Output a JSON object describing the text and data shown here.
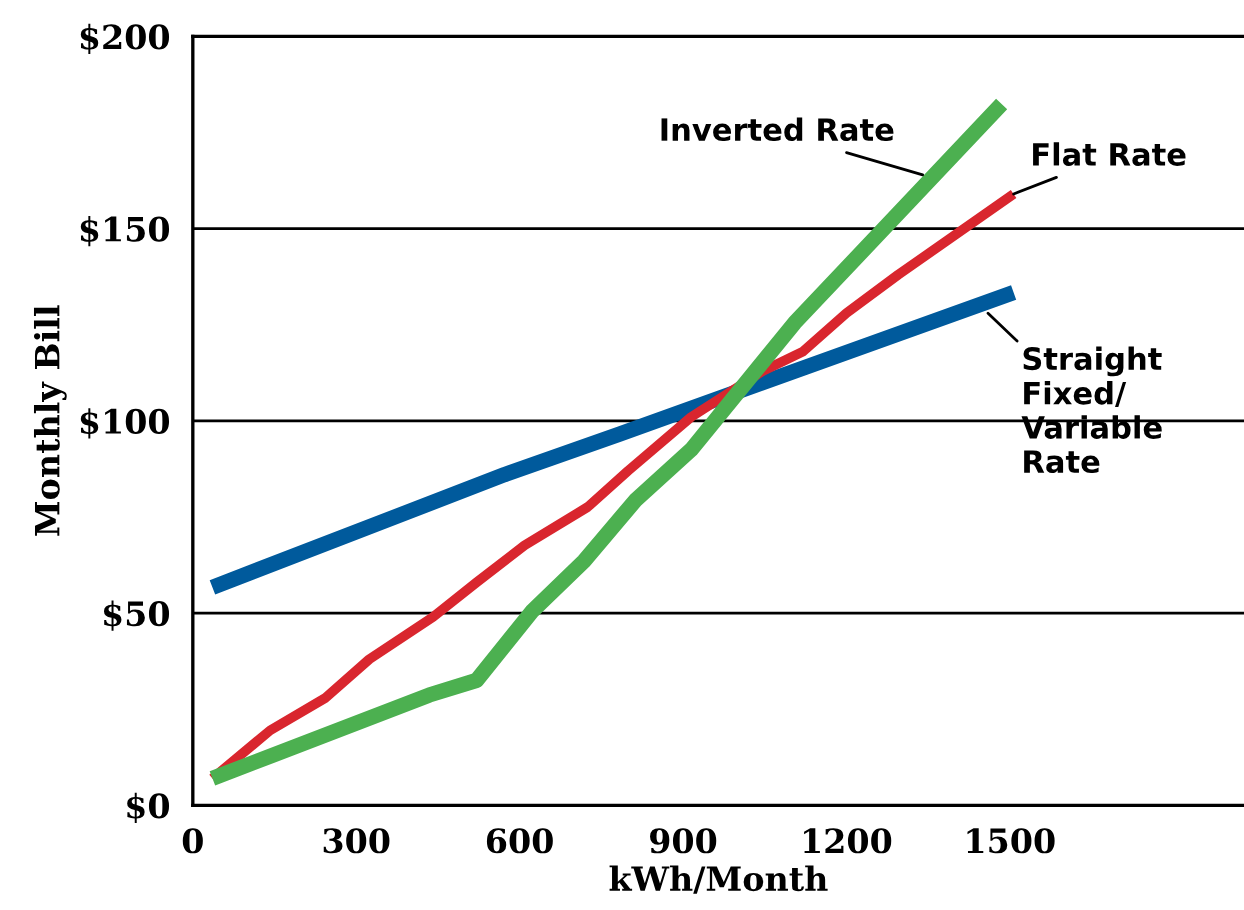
{
  "chart_data": {
    "type": "line",
    "xlabel": "kWh/Month",
    "ylabel": "Monthly Bill",
    "xlim": [
      0,
      1930
    ],
    "ylim": [
      0,
      200
    ],
    "xticks": [
      0,
      300,
      600,
      900,
      1200,
      1500
    ],
    "yticks": [
      {
        "value": 0,
        "label": "$0"
      },
      {
        "value": 50,
        "label": "$50"
      },
      {
        "value": 100,
        "label": "$100"
      },
      {
        "value": 150,
        "label": "$150"
      },
      {
        "value": 200,
        "label": "$200"
      }
    ],
    "grid": "y",
    "series": [
      {
        "color": "#005a9c",
        "x": [
          36,
          572,
          784,
          1507
        ],
        "values": [
          56.7,
          86,
          96.6,
          133.4
        ]
      },
      {
        "color": "#d9262e",
        "x": [
          36,
          142,
          244,
          324,
          441,
          521,
          609,
          725,
          799,
          915,
          1047,
          1120,
          1200,
          1295,
          1507
        ],
        "values": [
          7,
          19.5,
          28,
          38,
          49,
          58,
          67.6,
          77.6,
          87,
          101,
          113,
          118,
          128,
          138,
          159
        ]
      },
      {
        "color": "#4cb050",
        "x": [
          36,
          434,
          521,
          623,
          718,
          813,
          915,
          1105,
          1485
        ],
        "values": [
          7,
          28.7,
          32.5,
          50.5,
          63.5,
          79.4,
          92.5,
          125.5,
          182.4
        ]
      }
    ],
    "annotations": [
      {
        "text": "Inverted Rate",
        "x": 1340,
        "y": 164
      },
      {
        "text": "Flat Rate",
        "x": 1507,
        "y": 159
      },
      {
        "text": "Straight\nFixed/\nVariable\nRate",
        "x": 1460,
        "y": 128
      }
    ]
  }
}
